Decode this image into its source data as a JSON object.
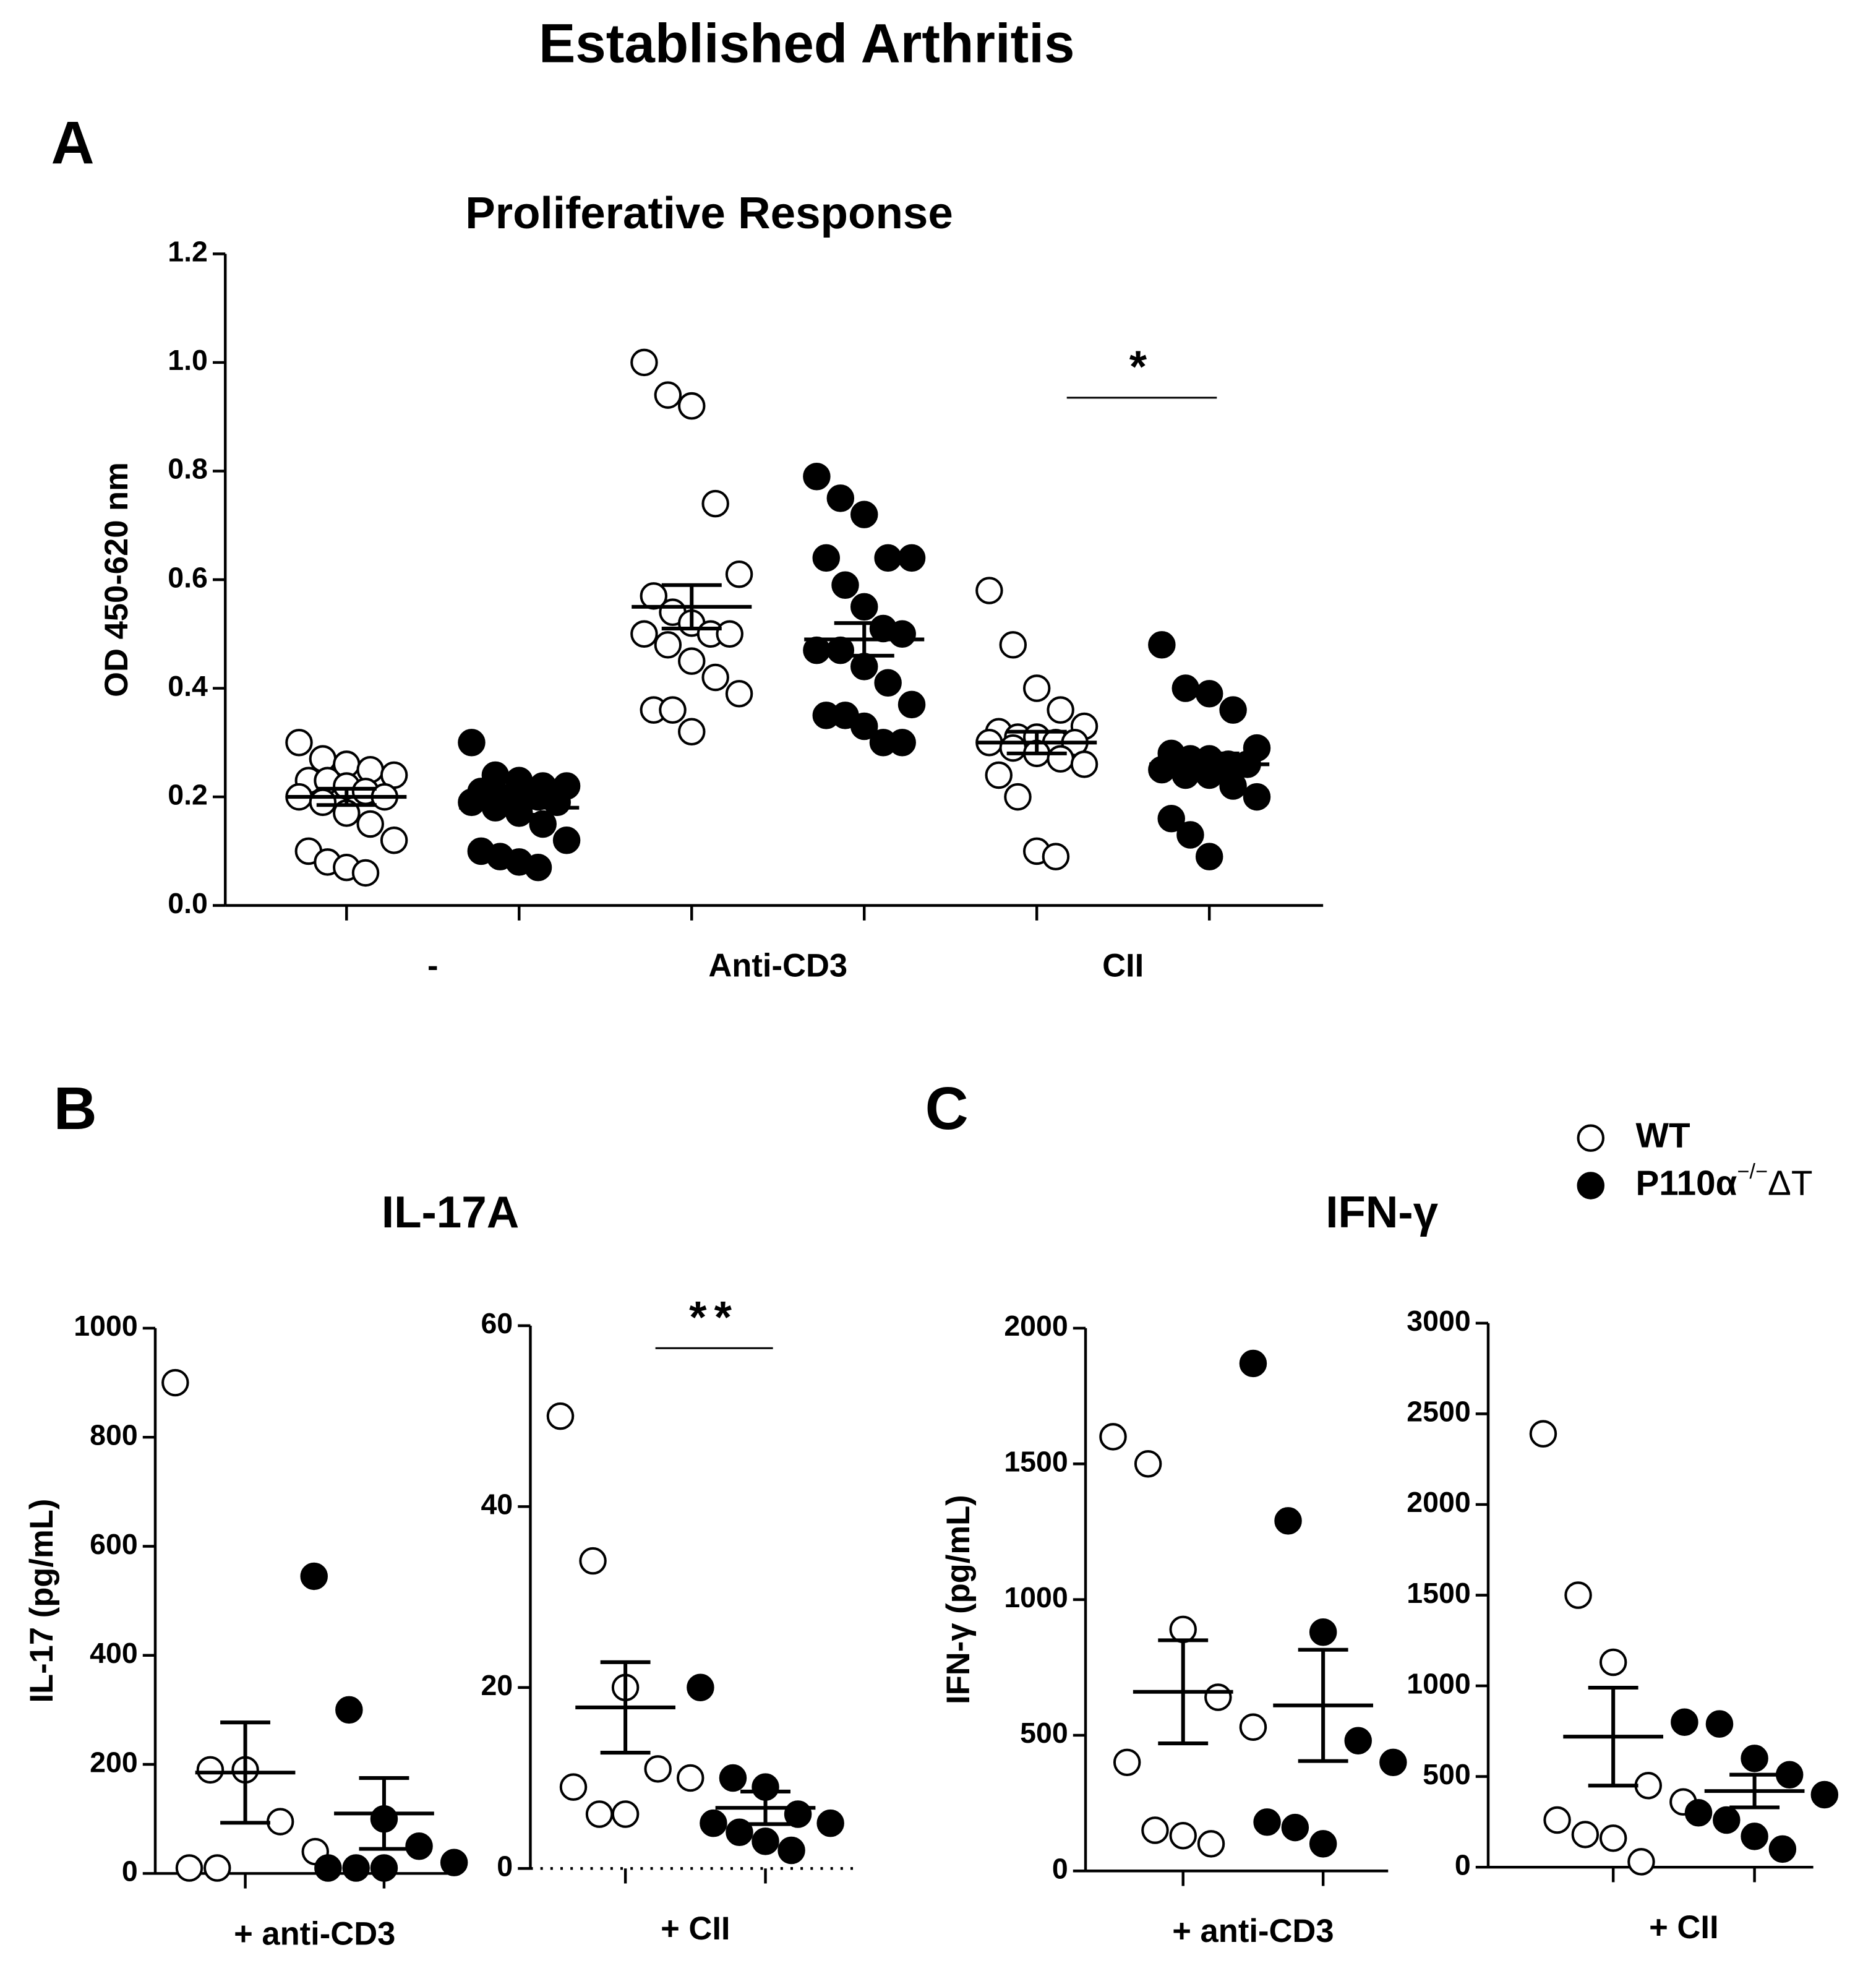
{
  "title": "Established Arthritis",
  "panel_labels": [
    "A",
    "B",
    "C"
  ],
  "group_titles": [
    "IL-17A",
    "IFN-γ"
  ],
  "legend": [
    {
      "name": "WT",
      "filled": false
    },
    {
      "name": "P110α",
      "sup": "−/−",
      "tail": "ΔT",
      "filled": true
    }
  ],
  "chart_data": [
    {
      "type": "scatter",
      "title": "Proliferative Response",
      "ylabel": "OD 450-620 nm",
      "categories": [
        "-",
        "Anti-CD3",
        "CII"
      ],
      "ylim": [
        0,
        1.2
      ],
      "yticks": [
        {
          "value": 0,
          "label": "0.0"
        },
        0.2,
        0.4,
        0.6,
        0.8,
        {
          "value": 1,
          "label": "1.0"
        },
        1.2
      ],
      "series": [
        {
          "filled": false,
          "color": "#000000",
          "values": [
            [
              0.3,
              0.27,
              0.26,
              0.25,
              0.24,
              0.23,
              0.23,
              0.22,
              0.21,
              0.2,
              0.2,
              0.19,
              0.17,
              0.15,
              0.12,
              0.1,
              0.08,
              0.07,
              0.06
            ],
            [
              1.0,
              0.94,
              0.92,
              0.74,
              0.61,
              0.57,
              0.54,
              0.52,
              0.5,
              0.5,
              0.5,
              0.48,
              0.45,
              0.42,
              0.39,
              0.36,
              0.36,
              0.32
            ],
            [
              0.58,
              0.48,
              0.4,
              0.36,
              0.33,
              0.32,
              0.31,
              0.31,
              0.3,
              0.3,
              0.3,
              0.29,
              0.28,
              0.27,
              0.26,
              0.24,
              0.2,
              0.1,
              0.09
            ]
          ],
          "mean": [
            0.2,
            0.55,
            0.3
          ],
          "sem": [
            0.015,
            0.04,
            0.02
          ]
        },
        {
          "filled": true,
          "color": "#000000",
          "values": [
            [
              0.3,
              0.24,
              0.23,
              0.22,
              0.22,
              0.21,
              0.2,
              0.2,
              0.2,
              0.19,
              0.19,
              0.18,
              0.17,
              0.15,
              0.12,
              0.1,
              0.09,
              0.08,
              0.07
            ],
            [
              0.79,
              0.75,
              0.72,
              0.64,
              0.64,
              0.64,
              0.59,
              0.55,
              0.51,
              0.5,
              0.47,
              0.47,
              0.44,
              0.41,
              0.37,
              0.35,
              0.35,
              0.33,
              0.3,
              0.3
            ],
            [
              0.48,
              0.4,
              0.39,
              0.36,
              0.29,
              0.28,
              0.27,
              0.27,
              0.26,
              0.26,
              0.25,
              0.24,
              0.24,
              0.22,
              0.2,
              0.16,
              0.13,
              0.09
            ]
          ],
          "mean": [
            0.18,
            0.49,
            0.26
          ],
          "sem": [
            0.013,
            0.03,
            0.02
          ]
        }
      ],
      "annotations": [
        {
          "text": "*",
          "category": 2
        }
      ]
    },
    {
      "type": "scatter",
      "ylabel": "IL-17 (pg/mL)",
      "categories": [
        "+ anti-CD3"
      ],
      "ylim": [
        0,
        1000
      ],
      "yticks": [
        0,
        200,
        400,
        600,
        800,
        1000
      ],
      "series": [
        {
          "filled": false,
          "color": "#000000",
          "values": [
            [
              900,
              190,
              190,
              95,
              40,
              10,
              10
            ]
          ],
          "mean": [
            185
          ],
          "sem": [
            92
          ]
        },
        {
          "filled": true,
          "color": "#000000",
          "values": [
            [
              545,
              300,
              100,
              50,
              20,
              10,
              10,
              10
            ]
          ],
          "mean": [
            110
          ],
          "sem": [
            65
          ]
        }
      ]
    },
    {
      "type": "scatter",
      "categories": [
        "+ CII"
      ],
      "ylim": [
        0,
        60
      ],
      "yticks": [
        0,
        20,
        40,
        60
      ],
      "series": [
        {
          "filled": false,
          "color": "#000000",
          "values": [
            [
              50,
              34,
              20,
              11,
              10,
              9,
              6,
              6
            ]
          ],
          "mean": [
            17.8
          ],
          "sem": [
            5
          ]
        },
        {
          "filled": true,
          "color": "#000000",
          "values": [
            [
              20,
              10,
              9,
              6,
              5,
              5,
              4,
              3,
              2
            ]
          ],
          "mean": [
            6.7
          ],
          "sem": [
            1.8
          ]
        }
      ],
      "annotations": [
        {
          "text": "**",
          "category": 0
        }
      ]
    },
    {
      "type": "scatter",
      "ylabel": "IFN-γ  (pg/mL)",
      "categories": [
        "+ anti-CD3"
      ],
      "ylim": [
        0,
        2000
      ],
      "yticks": [
        0,
        500,
        1000,
        1500,
        2000
      ],
      "series": [
        {
          "filled": false,
          "color": "#000000",
          "values": [
            [
              1600,
              1500,
              890,
              640,
              530,
              400,
              150,
              130,
              100
            ]
          ],
          "mean": [
            660
          ],
          "sem": [
            190
          ]
        },
        {
          "filled": true,
          "color": "#000000",
          "values": [
            [
              1870,
              1290,
              880,
              480,
              400,
              180,
              160,
              100
            ]
          ],
          "mean": [
            610
          ],
          "sem": [
            205
          ]
        }
      ]
    },
    {
      "type": "scatter",
      "categories": [
        "+ CII"
      ],
      "ylim": [
        0,
        3000
      ],
      "yticks": [
        0,
        500,
        1000,
        1500,
        2000,
        2500,
        3000
      ],
      "series": [
        {
          "filled": false,
          "color": "#000000",
          "values": [
            [
              2390,
              1500,
              1130,
              450,
              360,
              260,
              180,
              160,
              30
            ]
          ],
          "mean": [
            720
          ],
          "sem": [
            270
          ]
        },
        {
          "filled": true,
          "color": "#000000",
          "values": [
            [
              800,
              790,
              600,
              510,
              400,
              300,
              260,
              170,
              100
            ]
          ],
          "mean": [
            420
          ],
          "sem": [
            90
          ]
        }
      ]
    }
  ]
}
